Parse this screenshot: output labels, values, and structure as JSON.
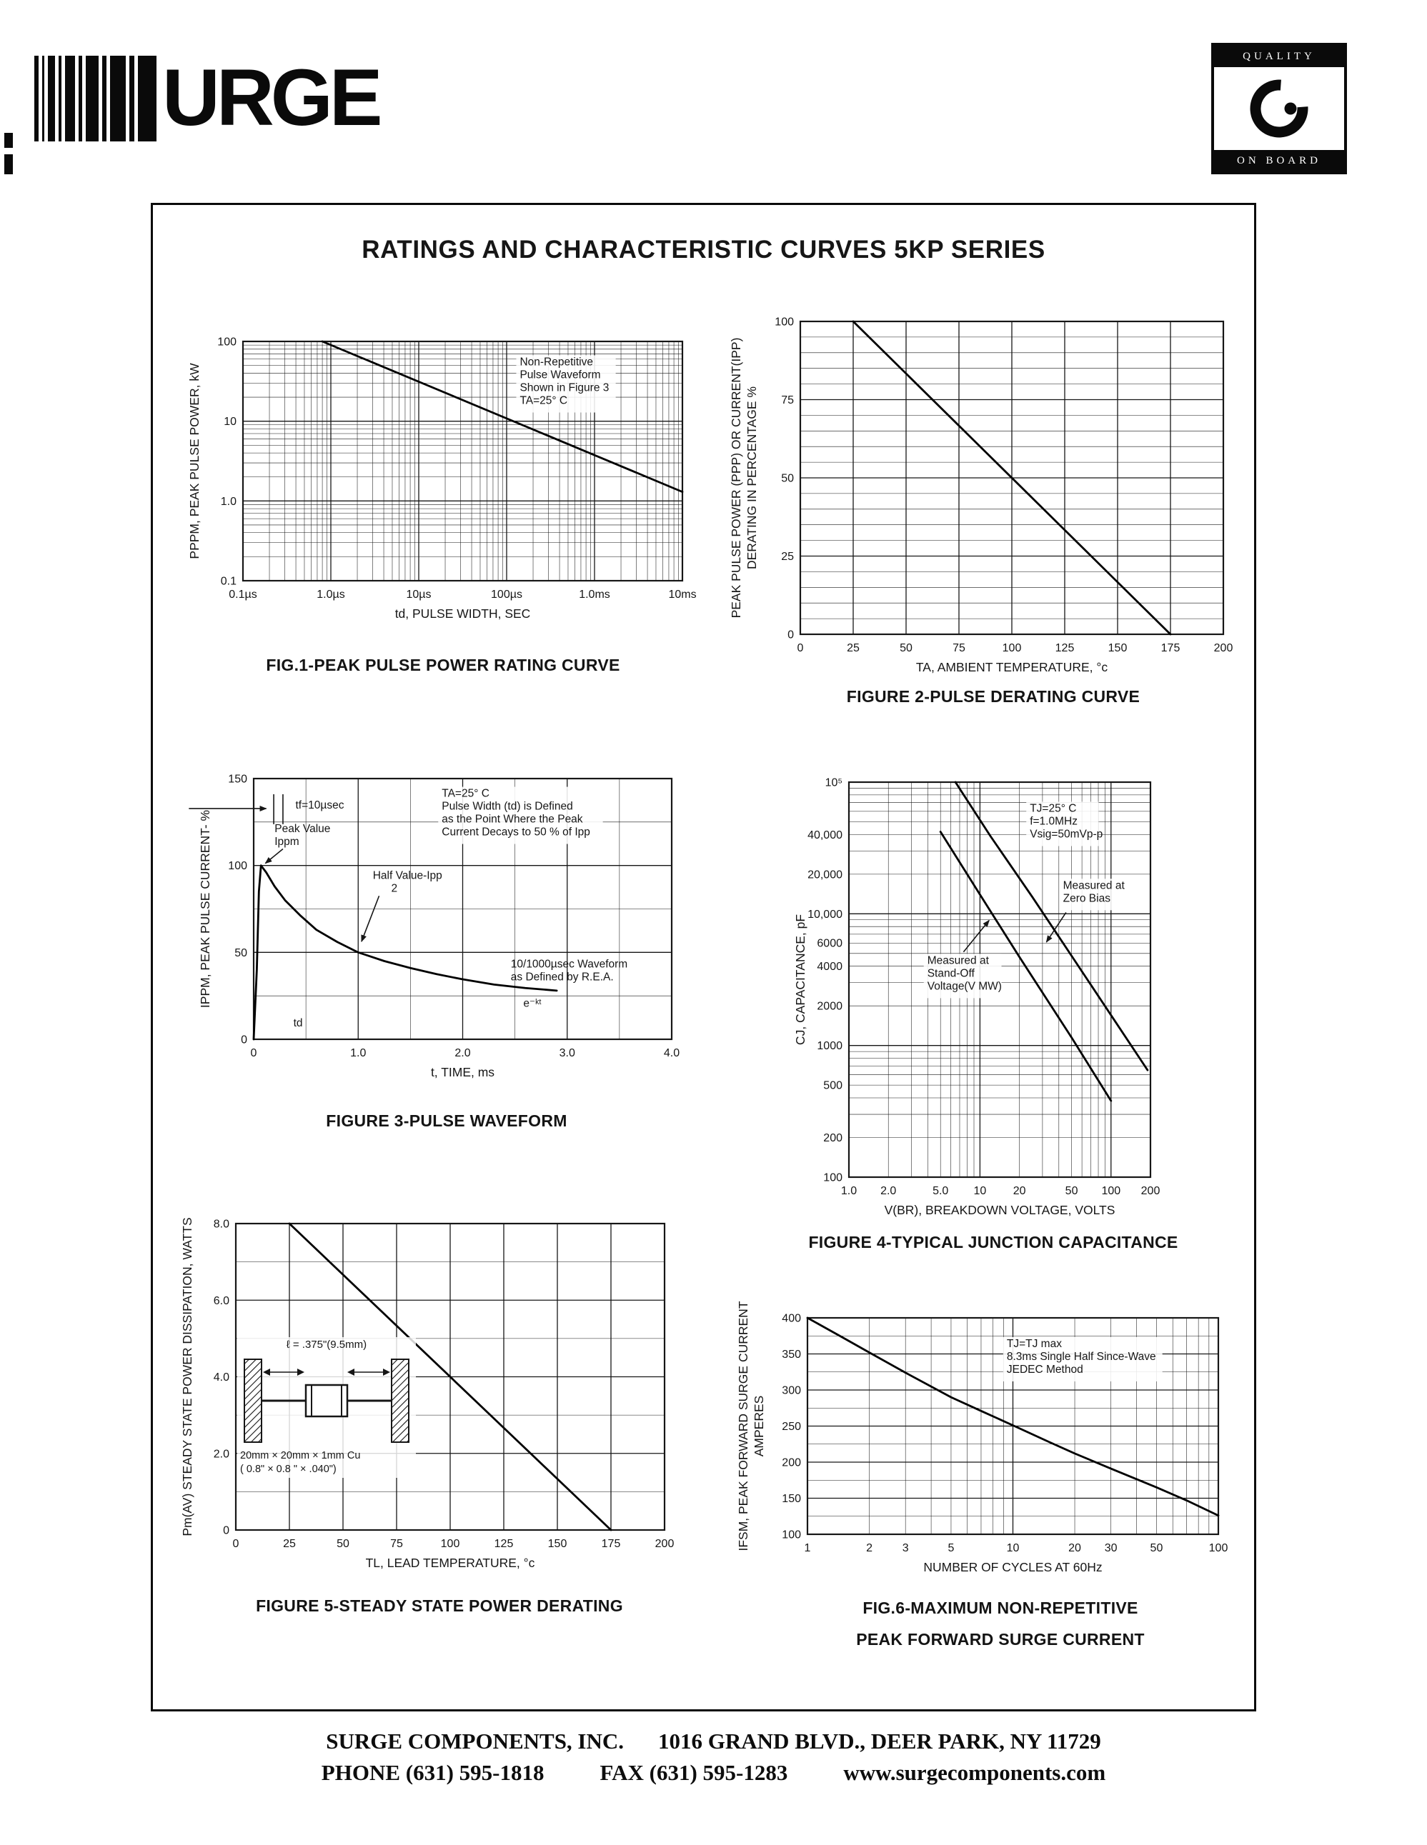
{
  "brand": {
    "logo_word": "URGE",
    "quality_top": "QUALITY",
    "quality_bottom": "ON BOARD"
  },
  "title": "RATINGS AND CHARACTERISTIC CURVES 5KP SERIES",
  "footer": {
    "company": "SURGE COMPONENTS, INC.",
    "address": "1016 GRAND BLVD., DEER PARK, NY  11729",
    "phone": "PHONE (631) 595-1818",
    "fax": "FAX (631) 595-1283",
    "website": "www.surgecomponents.com"
  },
  "chart_data": [
    {
      "id": "fig1",
      "type": "line",
      "caption": "FIG.1-PEAK PULSE POWER RATING CURVE",
      "xlabel": "td, PULSE WIDTH, SEC",
      "ylabel": "PPPM, PEAK PULSE POWER, kW",
      "xscale": "log",
      "yscale": "log",
      "xlim": [
        1e-07,
        0.01
      ],
      "ylim": [
        0.1,
        100
      ],
      "grid": "on",
      "legend_position": "none",
      "xticks": [
        {
          "v": 1e-07,
          "t": "0.1µs"
        },
        {
          "v": 1e-06,
          "t": "1.0µs"
        },
        {
          "v": 1e-05,
          "t": "10µs"
        },
        {
          "v": 0.0001,
          "t": "100µs"
        },
        {
          "v": 0.001,
          "t": "1.0ms"
        },
        {
          "v": 0.01,
          "t": "10ms"
        }
      ],
      "yticks": [
        {
          "v": 0.1,
          "t": "0.1"
        },
        {
          "v": 1,
          "t": "1.0"
        },
        {
          "v": 10,
          "t": "10"
        },
        {
          "v": 100,
          "t": "100"
        }
      ],
      "series": [
        {
          "name": "peak-pulse-power",
          "points": [
            [
              8e-07,
              100
            ],
            [
              0.01,
              1.3
            ]
          ]
        }
      ],
      "annotations": [
        {
          "text": [
            "Non-Repetitive",
            "Pulse Waveform",
            "Shown in Figure 3",
            "TA=25° C"
          ],
          "fx": 0.63,
          "fy": 0.1,
          "bg": true
        }
      ]
    },
    {
      "id": "fig2",
      "type": "line",
      "caption": "FIGURE 2-PULSE DERATING CURVE",
      "xlabel": "TA, AMBIENT  TEMPERATURE, °c",
      "ylabel": "PEAK PULSE POWER (PPP) OR CURRENT(IPP)",
      "ylabel2": "DERATING IN PERCENTAGE %",
      "xscale": "linear",
      "yscale": "linear",
      "xlim": [
        0,
        200
      ],
      "ylim": [
        0,
        100
      ],
      "grid": "on",
      "legend_position": "none",
      "xgrid_step": 25,
      "xmajor_step": 25,
      "ygrid_step": 5,
      "ymajor_step": 25,
      "xticks": [
        {
          "v": 0,
          "t": "0"
        },
        {
          "v": 25,
          "t": "25"
        },
        {
          "v": 50,
          "t": "50"
        },
        {
          "v": 75,
          "t": "75"
        },
        {
          "v": 100,
          "t": "100"
        },
        {
          "v": 125,
          "t": "125"
        },
        {
          "v": 150,
          "t": "150"
        },
        {
          "v": 175,
          "t": "175"
        },
        {
          "v": 200,
          "t": "200"
        }
      ],
      "yticks": [
        {
          "v": 0,
          "t": "0"
        },
        {
          "v": 25,
          "t": "25"
        },
        {
          "v": 50,
          "t": "50"
        },
        {
          "v": 75,
          "t": "75"
        },
        {
          "v": 100,
          "t": "100"
        }
      ],
      "series": [
        {
          "name": "pulse-derating",
          "points": [
            [
              25,
              100
            ],
            [
              175,
              0
            ]
          ]
        }
      ],
      "annotations": []
    },
    {
      "id": "fig3",
      "type": "line",
      "caption": "FIGURE 3-PULSE WAVEFORM",
      "xlabel": "t, TIME, ms",
      "ylabel": "IPPM, PEAK PULSE CURRENT- %",
      "xscale": "linear",
      "yscale": "linear",
      "xlim": [
        0,
        4
      ],
      "ylim": [
        0,
        150
      ],
      "grid": "on",
      "legend_position": "none",
      "xgrid_step": 0.5,
      "xmajor_step": 1,
      "ygrid_step": 25,
      "ymajor_step": 50,
      "xticks": [
        {
          "v": 0,
          "t": "0"
        },
        {
          "v": 1,
          "t": "1.0"
        },
        {
          "v": 2,
          "t": "2.0"
        },
        {
          "v": 3,
          "t": "3.0"
        },
        {
          "v": 4,
          "t": "4.0"
        }
      ],
      "yticks": [
        {
          "v": 0,
          "t": "0"
        },
        {
          "v": 50,
          "t": "50"
        },
        {
          "v": 100,
          "t": "100"
        },
        {
          "v": 150,
          "t": "150"
        }
      ],
      "series": [
        {
          "name": "pulse-waveform",
          "points": [
            [
              0,
              0
            ],
            [
              0.03,
              40
            ],
            [
              0.05,
              85
            ],
            [
              0.07,
              100
            ],
            [
              0.12,
              96
            ],
            [
              0.2,
              88
            ],
            [
              0.3,
              80
            ],
            [
              0.45,
              71
            ],
            [
              0.6,
              63
            ],
            [
              0.8,
              56
            ],
            [
              1.0,
              50
            ],
            [
              1.25,
              45
            ],
            [
              1.5,
              41
            ],
            [
              1.75,
              37.5
            ],
            [
              2.0,
              34.5
            ],
            [
              2.3,
              31.5
            ],
            [
              2.6,
              29.5
            ],
            [
              2.9,
              28
            ]
          ]
        }
      ],
      "annotations": [
        {
          "text": [
            "TA=25° C",
            "Pulse Width (td) is Defined",
            "as the Point Where the Peak",
            "Current Decays to 50 % of Ipp"
          ],
          "fx": 0.45,
          "fy": 0.07,
          "bg": true
        },
        {
          "text": [
            "tf=10µsec"
          ],
          "fx": 0.1,
          "fy": 0.115
        },
        {
          "text": [
            "Peak Value",
            "Ippm"
          ],
          "fx": 0.05,
          "fy": 0.205
        },
        {
          "text": [
            "Half Value-Ipp",
            "      2"
          ],
          "fx": 0.285,
          "fy": 0.385
        },
        {
          "text": [
            "10/1000µsec Waveform",
            "as Defined by R.E.A."
          ],
          "fx": 0.615,
          "fy": 0.725
        },
        {
          "text": [
            "e⁻ᵏᵗ"
          ],
          "fx": 0.645,
          "fy": 0.875
        },
        {
          "text": [
            "td"
          ],
          "fx": 0.095,
          "fy": 0.95
        },
        {
          "arrow": [
            -0.155,
            0.115,
            0.03,
            0.115
          ]
        },
        {
          "line": [
            0.048,
            0.06,
            0.048,
            0.175
          ]
        },
        {
          "line": [
            0.07,
            0.06,
            0.07,
            0.175
          ]
        },
        {
          "arrow": [
            0.07,
            0.27,
            0.028,
            0.325
          ]
        },
        {
          "arrow": [
            0.3,
            0.45,
            0.258,
            0.625
          ]
        }
      ]
    },
    {
      "id": "fig4",
      "type": "line",
      "caption": "FIGURE 4-TYPICAL JUNCTION CAPACITANCE",
      "xlabel": "V(BR), BREAKDOWN  VOLTAGE, VOLTS",
      "ylabel": "CJ, CAPACITANCE, pF",
      "xscale": "log",
      "yscale": "log",
      "xlim": [
        1,
        200
      ],
      "ylim": [
        100,
        100000
      ],
      "grid": "on",
      "legend_position": "none",
      "xticks": [
        {
          "v": 1,
          "t": "1.0"
        },
        {
          "v": 2,
          "t": "2.0"
        },
        {
          "v": 5,
          "t": "5.0"
        },
        {
          "v": 10,
          "t": "10"
        },
        {
          "v": 20,
          "t": "20"
        },
        {
          "v": 50,
          "t": "50"
        },
        {
          "v": 100,
          "t": "100"
        },
        {
          "v": 200,
          "t": "200"
        }
      ],
      "yticks": [
        {
          "v": 100,
          "t": "100"
        },
        {
          "v": 200,
          "t": "200"
        },
        {
          "v": 500,
          "t": "500"
        },
        {
          "v": 1000,
          "t": "1000"
        },
        {
          "v": 2000,
          "t": "2000"
        },
        {
          "v": 4000,
          "t": "4000"
        },
        {
          "v": 6000,
          "t": "6000"
        },
        {
          "v": 10000,
          "t": "10,000"
        },
        {
          "v": 20000,
          "t": "20,000"
        },
        {
          "v": 40000,
          "t": "40,000"
        },
        {
          "v": 100000,
          "t": "10⁵"
        }
      ],
      "series": [
        {
          "name": "measured-at-zero-bias",
          "points": [
            [
              6.5,
              100000
            ],
            [
              12,
              39000
            ],
            [
              25,
              13500
            ],
            [
              50,
              4800
            ],
            [
              100,
              1700
            ],
            [
              190,
              650
            ]
          ]
        },
        {
          "name": "measured-at-standoff-voltage",
          "points": [
            [
              5,
              42000
            ],
            [
              10,
              14000
            ],
            [
              20,
              4700
            ],
            [
              50,
              1150
            ],
            [
              100,
              380
            ]
          ]
        }
      ],
      "annotations": [
        {
          "text": [
            "TJ=25° C",
            "f=1.0MHz",
            "Vsig=50mVp-p"
          ],
          "fx": 0.6,
          "fy": 0.075,
          "bg": true
        },
        {
          "text": [
            "Measured at",
            "Zero Bias"
          ],
          "fx": 0.71,
          "fy": 0.27,
          "bg": true
        },
        {
          "text": [
            "Measured at",
            "Stand-Off",
            "Voltage(V MW)"
          ],
          "fx": 0.26,
          "fy": 0.46,
          "bg": true
        },
        {
          "arrow": [
            0.72,
            0.33,
            0.655,
            0.405
          ]
        },
        {
          "arrow": [
            0.38,
            0.43,
            0.465,
            0.35
          ]
        }
      ]
    },
    {
      "id": "fig5",
      "type": "line",
      "caption": "FIGURE 5-STEADY STATE POWER DERATING",
      "xlabel": "TL, LEAD  TEMPERATURE, °c",
      "ylabel": "Pm(AV) STEADY STATE POWER DISSIPATION, WATTS",
      "xscale": "linear",
      "yscale": "linear",
      "xlim": [
        0,
        200
      ],
      "ylim": [
        0,
        8
      ],
      "grid": "on",
      "legend_position": "none",
      "xgrid_step": 25,
      "xmajor_step": 25,
      "ygrid_step": 1,
      "ymajor_step": 2,
      "xticks": [
        {
          "v": 0,
          "t": "0"
        },
        {
          "v": 25,
          "t": "25"
        },
        {
          "v": 50,
          "t": "50"
        },
        {
          "v": 75,
          "t": "75"
        },
        {
          "v": 100,
          "t": "100"
        },
        {
          "v": 125,
          "t": "125"
        },
        {
          "v": 150,
          "t": "150"
        },
        {
          "v": 175,
          "t": "175"
        },
        {
          "v": 200,
          "t": "200"
        }
      ],
      "yticks": [
        {
          "v": 0,
          "t": "0"
        },
        {
          "v": 2,
          "t": "2.0"
        },
        {
          "v": 4,
          "t": "4.0"
        },
        {
          "v": 6,
          "t": "6.0"
        },
        {
          "v": 8,
          "t": "8.0"
        }
      ],
      "series": [
        {
          "name": "steady-state-power",
          "points": [
            [
              25,
              8
            ],
            [
              175,
              0
            ]
          ]
        }
      ],
      "annotations": [],
      "inset": {
        "lead_label": "ℓ = .375\"(9.5mm)",
        "cu_label1": "20mm × 20mm × 1mm Cu",
        "cu_label2": "( 0.8\" ×  0.8 \" × .040\")"
      }
    },
    {
      "id": "fig6",
      "type": "line",
      "caption": "FIG.6-MAXIMUM NON-REPETITIVE",
      "caption2": "PEAK FORWARD SURGE CURRENT",
      "xlabel": "NUMBER  OF  CYCLES  AT  60Hz",
      "ylabel": "IFSM, PEAK FORWARD SURGE CURRENT",
      "ylabel2": "AMPERES",
      "xscale": "log",
      "yscale": "linear",
      "xlim": [
        1,
        100
      ],
      "ylim": [
        100,
        400
      ],
      "grid": "on",
      "legend_position": "none",
      "ygrid_step": 25,
      "ymajor_step": 50,
      "xticks": [
        {
          "v": 1,
          "t": "1"
        },
        {
          "v": 2,
          "t": "2"
        },
        {
          "v": 3,
          "t": "3"
        },
        {
          "v": 5,
          "t": "5"
        },
        {
          "v": 10,
          "t": "10"
        },
        {
          "v": 20,
          "t": "20"
        },
        {
          "v": 30,
          "t": "30"
        },
        {
          "v": 50,
          "t": "50"
        },
        {
          "v": 100,
          "t": "100"
        }
      ],
      "yticks": [
        {
          "v": 100,
          "t": "100"
        },
        {
          "v": 150,
          "t": "150"
        },
        {
          "v": 200,
          "t": "200"
        },
        {
          "v": 250,
          "t": "250"
        },
        {
          "v": 300,
          "t": "300"
        },
        {
          "v": 350,
          "t": "350"
        },
        {
          "v": 400,
          "t": "400"
        }
      ],
      "series": [
        {
          "name": "forward-surge-current",
          "points": [
            [
              1,
              400
            ],
            [
              1.5,
              372
            ],
            [
              2,
              352
            ],
            [
              3,
              324
            ],
            [
              5,
              290
            ],
            [
              7,
              271
            ],
            [
              10,
              251
            ],
            [
              15,
              228
            ],
            [
              20,
              212
            ],
            [
              30,
              191
            ],
            [
              50,
              165
            ],
            [
              70,
              147
            ],
            [
              100,
              126
            ]
          ]
        }
      ],
      "annotations": [
        {
          "text": [
            "TJ=TJ max",
            "8.3ms Single Half Since-Wave",
            "JEDEC Method"
          ],
          "fx": 0.485,
          "fy": 0.135,
          "bg": true
        }
      ]
    }
  ]
}
